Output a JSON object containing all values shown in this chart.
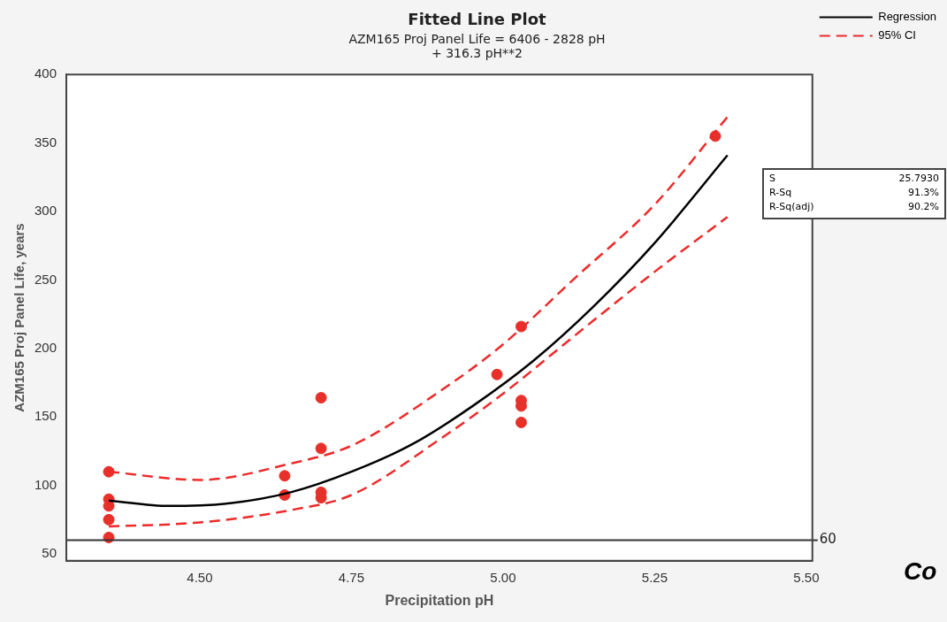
{
  "chart_data": {
    "type": "scatter",
    "title": "Fitted Line Plot",
    "subtitle": "AZM165 Proj Panel Life = 6406 - 2828 pH\n+ 316.3 pH**2",
    "xlabel": "Precipitation pH",
    "ylabel": "AZM165 Proj Panel Life, years",
    "xlim": [
      4.28,
      5.51
    ],
    "xticks": [
      {
        "value": 4.5,
        "label": "4.50"
      },
      {
        "value": 4.75,
        "label": "4.75"
      },
      {
        "value": 5,
        "label": "5.00"
      },
      {
        "value": 5.25,
        "label": "5.25"
      },
      {
        "value": 5.5,
        "label": "5.50"
      }
    ],
    "ylim": [
      45,
      400
    ],
    "yticks": [
      50,
      100,
      150,
      200,
      250,
      300,
      350,
      400
    ],
    "series": [
      {
        "color": "#e8302a",
        "x": [
          4.35,
          4.35,
          4.35,
          4.35,
          4.35,
          4.64,
          4.64,
          4.7,
          4.7,
          4.7,
          4.7,
          4.99,
          5.03,
          5.03,
          5.03,
          5.03,
          5.35
        ],
        "values": [
          110,
          90,
          85,
          75,
          62,
          107,
          93,
          127,
          95,
          91,
          164,
          181,
          216,
          162,
          158,
          146,
          355
        ]
      },
      {
        "type": "line",
        "name": "Regression",
        "color": "#000000",
        "line_style": "solid",
        "marker": "none",
        "x": [
          4.35,
          4.45,
          4.55,
          4.65,
          4.75,
          4.85,
          4.95,
          5.05,
          5.15,
          5.25,
          5.37
        ],
        "values": [
          89,
          85,
          87,
          95,
          110,
          130,
          158,
          191,
          231,
          277,
          341
        ]
      },
      {
        "type": "line",
        "name": "95% CI",
        "color": "#ee2a2a",
        "line_style": "dashed",
        "marker": "none",
        "x": [
          4.35,
          4.5,
          4.65,
          4.75,
          4.9,
          5.0,
          5.12,
          5.25,
          5.37
        ],
        "values": [
          110,
          104,
          116,
          129,
          170,
          203,
          252,
          305,
          369
        ]
      },
      {
        "type": "line",
        "color": "#ee2a2a",
        "line_style": "dashed",
        "marker": "none",
        "x": [
          4.35,
          4.5,
          4.65,
          4.75,
          4.9,
          5.0,
          5.12,
          5.25,
          5.37
        ],
        "values": [
          70,
          73,
          82,
          93,
          135,
          167,
          210,
          256,
          296
        ]
      }
    ],
    "ref_lines": [
      {
        "axis": "y",
        "value": 60,
        "label": "60",
        "color": "#333333"
      }
    ],
    "legend": "top right",
    "marker": "circle",
    "grid": false,
    "annotations": [
      "S 25.7930",
      "R-Sq 91.3%",
      "R-Sq(adj) 90.2%",
      "Co"
    ]
  }
}
